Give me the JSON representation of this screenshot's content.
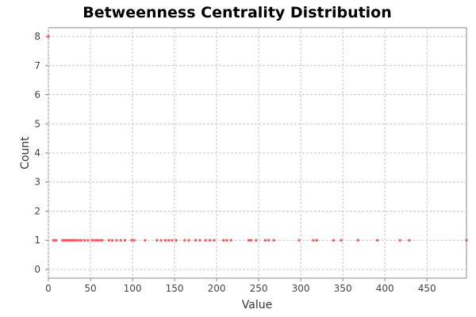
{
  "chart_data": {
    "type": "scatter",
    "title": "Betweenness Centrality Distribution",
    "xlabel": "Value",
    "ylabel": "Count",
    "xlim": [
      0,
      497
    ],
    "ylim": [
      -0.3,
      8.3
    ],
    "x_ticks": [
      "0",
      "50",
      "100",
      "150",
      "200",
      "250",
      "300",
      "350",
      "400",
      "450"
    ],
    "y_ticks": [
      "0",
      "1",
      "2",
      "3",
      "4",
      "5",
      "6",
      "7",
      "8"
    ],
    "grid": true,
    "colors": {
      "point": "#f25454",
      "grid": "#c8c8c8",
      "axis": "#888888",
      "plot_bg": "#ffffff"
    },
    "series": [
      {
        "points": [
          [
            0,
            8
          ],
          [
            6,
            1
          ],
          [
            9,
            1
          ],
          [
            17,
            1
          ],
          [
            19,
            1
          ],
          [
            21,
            1
          ],
          [
            23,
            1
          ],
          [
            25,
            1
          ],
          [
            27,
            1
          ],
          [
            29,
            1
          ],
          [
            31,
            1
          ],
          [
            33,
            1
          ],
          [
            36,
            1
          ],
          [
            39,
            1
          ],
          [
            43,
            1
          ],
          [
            47,
            1
          ],
          [
            52,
            1
          ],
          [
            55,
            1
          ],
          [
            58,
            1
          ],
          [
            61,
            1
          ],
          [
            64,
            1
          ],
          [
            72,
            1
          ],
          [
            76,
            1
          ],
          [
            81,
            1
          ],
          [
            86,
            1
          ],
          [
            91,
            1
          ],
          [
            99,
            1
          ],
          [
            102,
            1
          ],
          [
            115,
            1
          ],
          [
            129,
            1
          ],
          [
            134,
            1
          ],
          [
            139,
            1
          ],
          [
            143,
            1
          ],
          [
            147,
            1
          ],
          [
            152,
            1
          ],
          [
            162,
            1
          ],
          [
            167,
            1
          ],
          [
            175,
            1
          ],
          [
            180,
            1
          ],
          [
            187,
            1
          ],
          [
            192,
            1
          ],
          [
            197,
            1
          ],
          [
            208,
            1
          ],
          [
            212,
            1
          ],
          [
            217,
            1
          ],
          [
            238,
            1
          ],
          [
            241,
            1
          ],
          [
            247,
            1
          ],
          [
            258,
            1
          ],
          [
            262,
            1
          ],
          [
            268,
            1
          ],
          [
            298,
            1
          ],
          [
            315,
            1
          ],
          [
            319,
            1
          ],
          [
            339,
            1
          ],
          [
            348,
            1
          ],
          [
            368,
            1
          ],
          [
            391,
            1
          ],
          [
            418,
            1
          ],
          [
            429,
            1
          ],
          [
            497,
            1
          ]
        ]
      }
    ]
  }
}
